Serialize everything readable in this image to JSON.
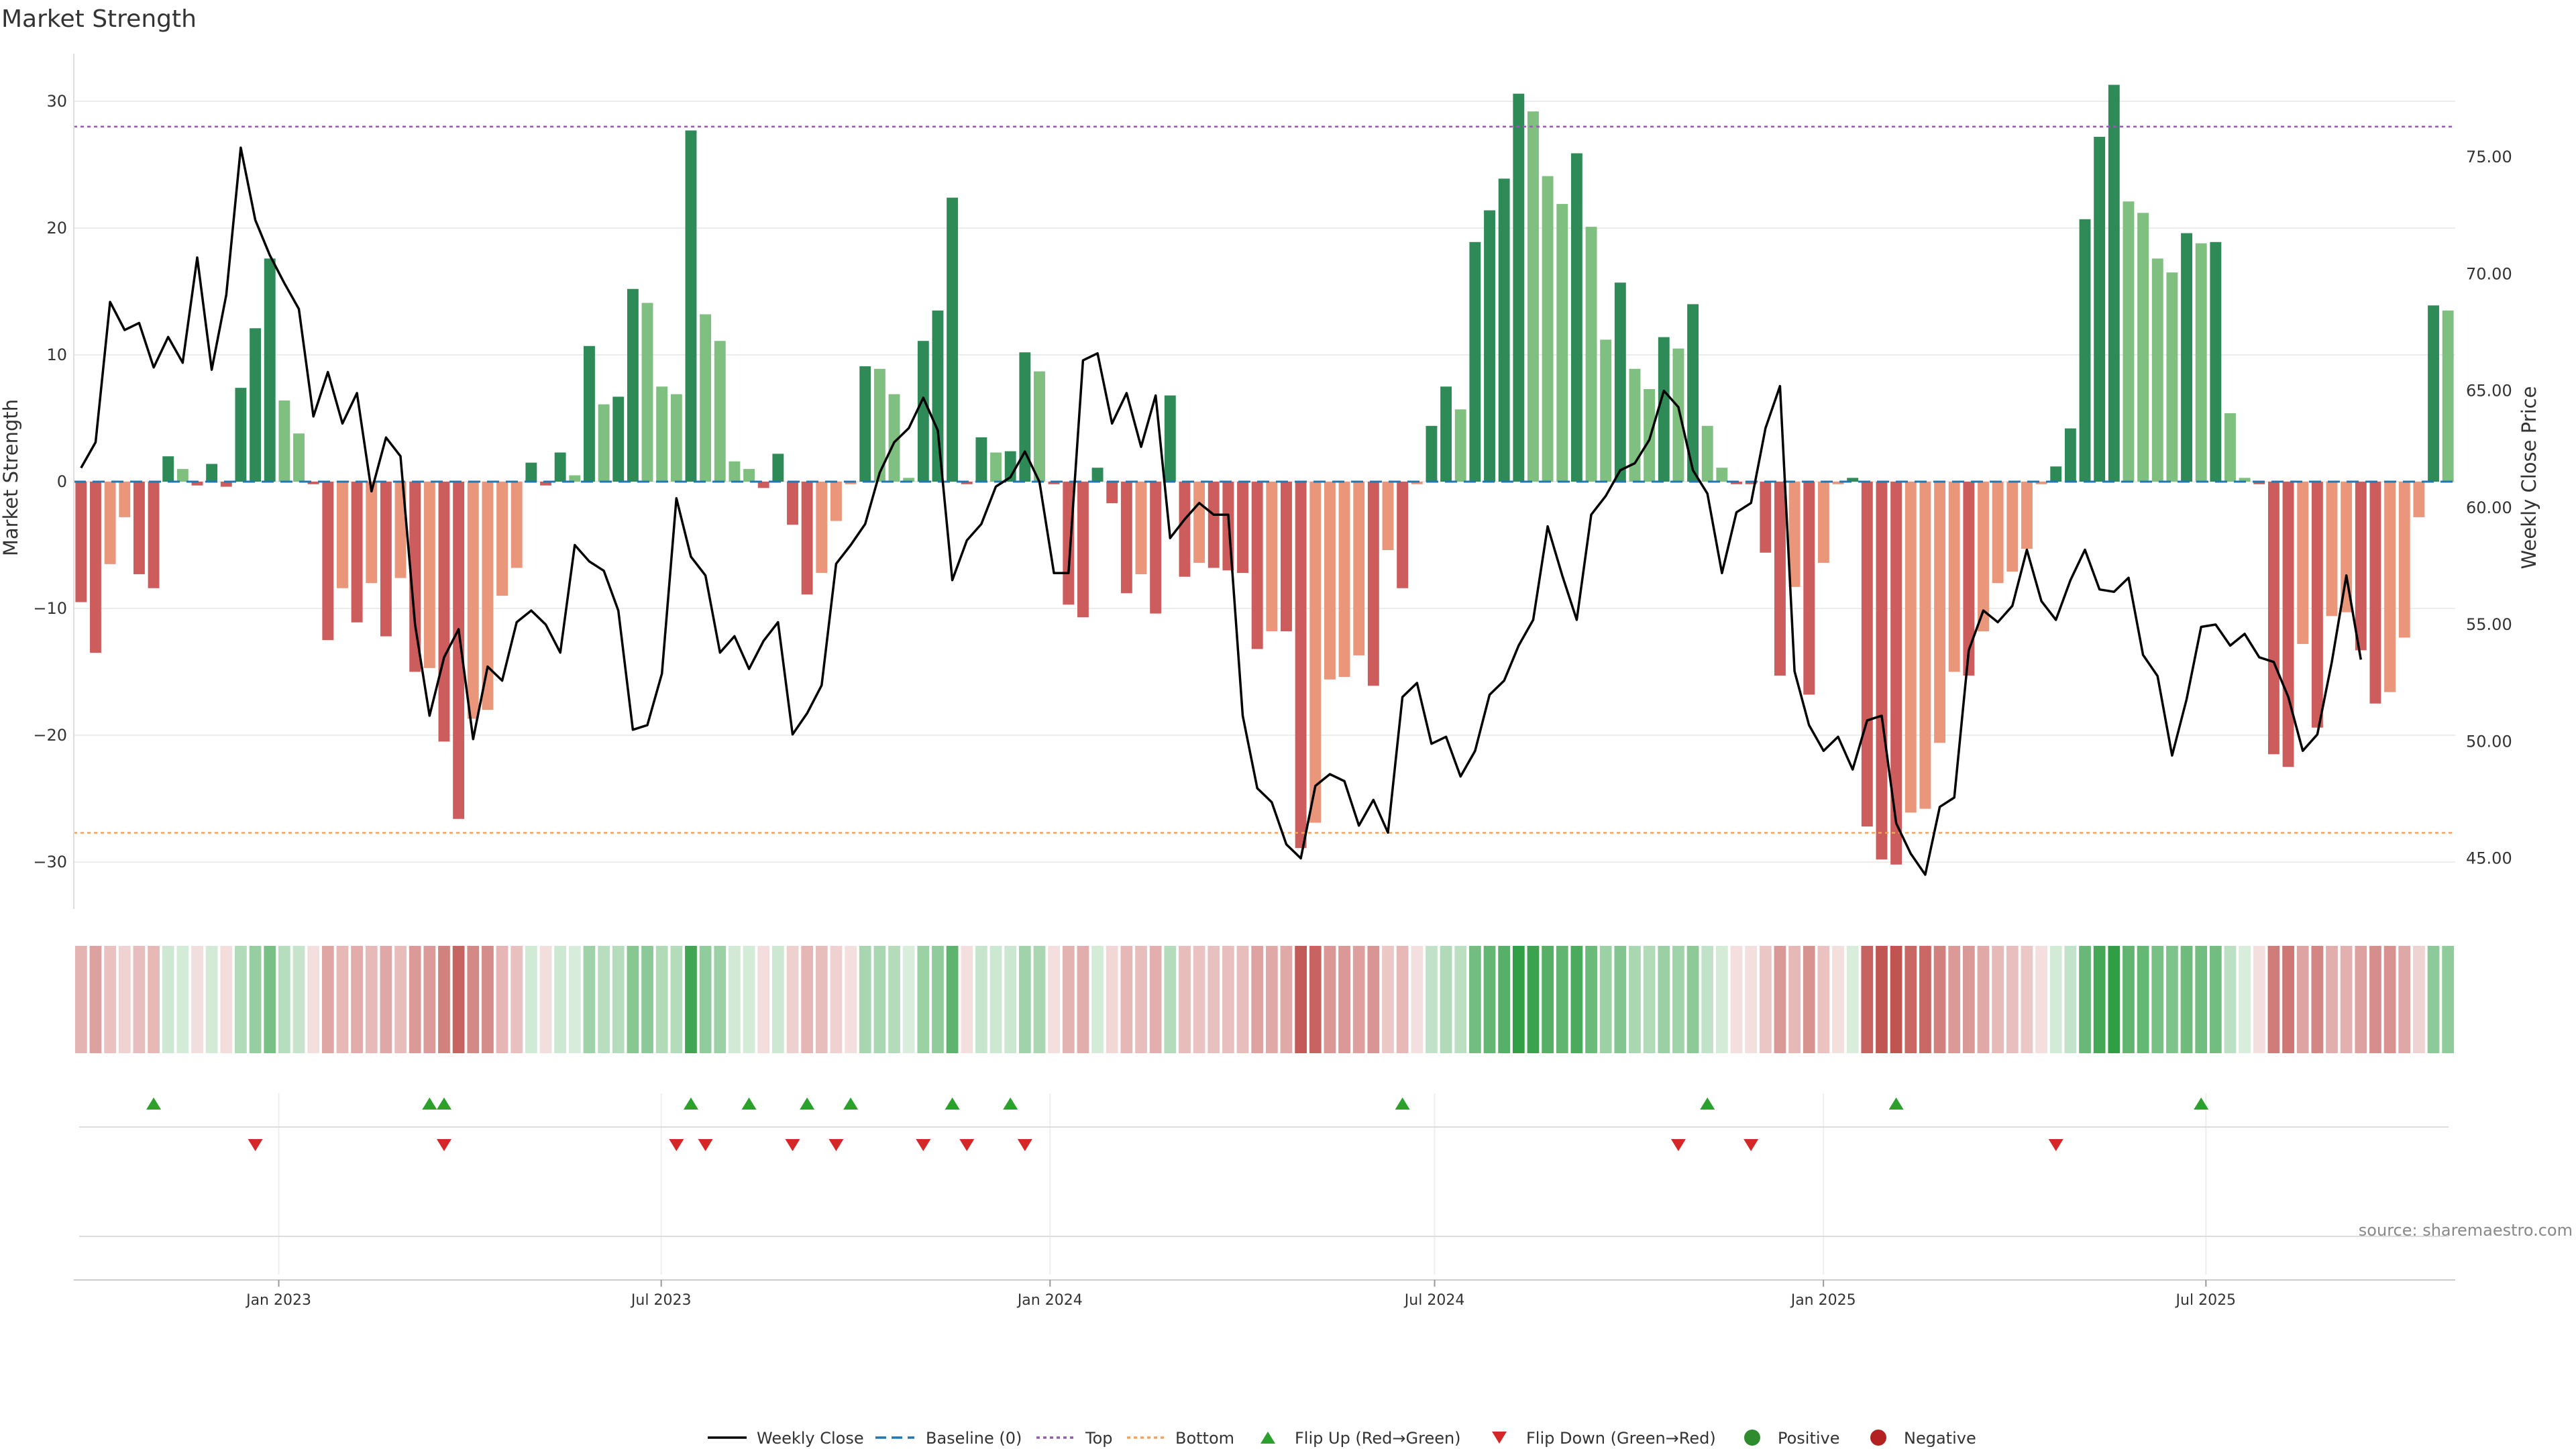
{
  "chart_data": {
    "type": "bar",
    "title": "Market Strength",
    "ylabel": "Market Strength",
    "y2label": "Weekly Close Price",
    "ylim": [
      -34,
      34
    ],
    "y2lim": [
      43.0,
      80.0
    ],
    "yticks": [
      30,
      20,
      10,
      0,
      -10,
      -20,
      -30
    ],
    "ytick_labels": [
      "30",
      "20",
      "10",
      "0",
      "−10",
      "−20",
      "−30"
    ],
    "y2ticks": [
      75,
      70,
      65,
      60,
      55,
      50,
      45
    ],
    "y2tick_labels": [
      "75.00",
      "70.00",
      "65.00",
      "60.00",
      "55.00",
      "50.00",
      "45.00"
    ],
    "top_line": 28,
    "bottom_line": -27.7,
    "x_start": "2022-09-26",
    "x_end": "2025-10-27",
    "x_ticks": [
      {
        "date": "2023-01-01",
        "label": "Jan 2023"
      },
      {
        "date": "2023-07-01",
        "label": "Jul 2023"
      },
      {
        "date": "2024-01-01",
        "label": "Jan 2024"
      },
      {
        "date": "2024-07-01",
        "label": "Jul 2024"
      },
      {
        "date": "2025-01-01",
        "label": "Jan 2025"
      },
      {
        "date": "2025-07-01",
        "label": "Jul 2025"
      }
    ],
    "series": [
      {
        "name": "Market Strength",
        "type": "bar",
        "values": [
          -9.5,
          -13.5,
          -6.5,
          -2.8,
          -7.3,
          -8.4,
          2,
          1,
          -0.3,
          1.4,
          -0.4,
          7.4,
          12.1,
          17.6,
          6.4,
          3.8,
          -0.2,
          -12.5,
          -8.4,
          -11.1,
          -8,
          -12.2,
          -7.6,
          -15,
          -14.7,
          -20.5,
          -26.6,
          -18.7,
          -18,
          -9,
          -6.8,
          1.5,
          -0.3,
          2.3,
          0.5,
          10.7,
          6.1,
          6.7,
          15.2,
          14.1,
          7.5,
          6.9,
          27.7,
          13.2,
          11.1,
          1.6,
          1,
          -0.5,
          2.2,
          -3.4,
          -8.9,
          -7.2,
          -3.1,
          -0.2,
          9.1,
          8.9,
          6.9,
          0.3,
          11.1,
          13.5,
          22.4,
          -0.2,
          3.5,
          2.3,
          2.4,
          10.2,
          8.7,
          -0.2,
          -9.7,
          -10.7,
          1.1,
          -1.7,
          -8.8,
          -7.3,
          -10.4,
          6.8,
          -7.5,
          -6.4,
          -6.8,
          -7,
          -7.2,
          -13.2,
          -11.8,
          -11.8,
          -28.9,
          -26.9,
          -15.6,
          -15.4,
          -13.7,
          -16.1,
          -5.4,
          -8.4,
          -0.2,
          4.4,
          7.5,
          5.7,
          18.9,
          21.4,
          23.9,
          30.6,
          29.2,
          24.1,
          21.9,
          25.9,
          20.1,
          11.2,
          15.7,
          8.9,
          7.3,
          11.4,
          10.5,
          14,
          4.4,
          1.1,
          -0.2,
          -0.2,
          -5.6,
          -15.3,
          -8.3,
          -16.8,
          -6.4,
          -0.2,
          0.3,
          -27.2,
          -29.8,
          -30.2,
          -26.1,
          -25.8,
          -20.6,
          -15,
          -15.3,
          -11.8,
          -8,
          -7.1,
          -5.3,
          -0.2,
          1.2,
          4.2,
          20.7,
          27.2,
          31.3,
          22.1,
          21.2,
          17.6,
          16.5,
          19.6,
          18.8,
          18.9,
          5.4,
          0.3,
          -0.2,
          -21.5,
          -22.5,
          -12.8,
          -19.4,
          -10.6,
          -10.3,
          -13.3,
          -17.5,
          -16.6,
          -12.3,
          -2.8,
          13.9,
          13.5
        ]
      },
      {
        "name": "Weekly Close",
        "type": "line",
        "axis": "y2",
        "values": [
          61.7,
          62.8,
          68.8,
          67.6,
          67.9,
          66,
          67.3,
          66.2,
          70.7,
          65.9,
          69.1,
          75.4,
          72.3,
          70.8,
          69.6,
          68.5,
          63.9,
          65.8,
          63.6,
          64.9,
          60.7,
          63,
          62.2,
          55,
          51.1,
          53.6,
          54.8,
          50.1,
          53.2,
          52.6,
          55.1,
          55.6,
          55,
          53.8,
          58.4,
          57.7,
          57.3,
          55.6,
          50.5,
          50.7,
          52.9,
          60.4,
          57.9,
          57.1,
          53.8,
          54.5,
          53.1,
          54.3,
          55.1,
          50.3,
          51.2,
          52.4,
          57.6,
          58.4,
          59.3,
          61.5,
          62.8,
          63.4,
          64.7,
          63.3,
          56.9,
          58.6,
          59.3,
          60.9,
          61.3,
          62.4,
          61.1,
          57.2,
          57.2,
          66.3,
          66.6,
          63.6,
          64.9,
          62.6,
          64.8,
          58.7,
          59.5,
          60.2,
          59.7,
          59.7,
          51.1,
          48,
          47.4,
          45.6,
          45,
          48.1,
          48.6,
          48.3,
          46.4,
          47.5,
          46.1,
          51.9,
          52.5,
          49.9,
          50.2,
          48.5,
          49.6,
          52,
          52.6,
          54.1,
          55.2,
          59.2,
          57.1,
          55.2,
          59.7,
          60.5,
          61.6,
          61.9,
          62.9,
          65,
          64.3,
          61.6,
          60.6,
          57.2,
          59.8,
          60.2,
          63.4,
          65.2,
          53,
          50.7,
          49.6,
          50.2,
          48.8,
          50.9,
          51.1,
          46.5,
          45.2,
          44.3,
          47.2,
          47.6,
          53.9,
          55.6,
          55.1,
          55.8,
          58.2,
          56,
          55.2,
          56.9,
          58.2,
          56.5,
          56.4,
          57,
          53.7,
          52.8,
          49.4,
          51.8,
          54.9,
          55,
          54.1,
          54.6,
          53.6,
          53.4,
          51.9,
          49.6,
          50.3,
          53.4,
          57.1,
          53.5
        ]
      }
    ],
    "heat_strip": "Market Strength intensity (red negative, green positive)",
    "flip_up_weeks": [
      5,
      24,
      25,
      42,
      46,
      50,
      53,
      60,
      64,
      91,
      112,
      125,
      146
    ],
    "flip_down_weeks": [
      12,
      25,
      41,
      43,
      49,
      52,
      58,
      61,
      65,
      110,
      115,
      136
    ],
    "legend": [
      "Weekly Close",
      "Baseline (0)",
      "Top",
      "Bottom",
      "Flip Up (Red→Green)",
      "Flip Down (Green→Red)",
      "Positive",
      "Negative"
    ],
    "legend_position": "bottom-center",
    "source": "source: sharemaestro.com",
    "colors": {
      "pos_strong": "#2e8b57",
      "pos_light": "#7fbf7f",
      "neg_strong": "#cd5c5c",
      "neg_light": "#e9967a",
      "line": "#000000",
      "baseline": "#1f77b4",
      "top": "#9b59b6",
      "bottom": "#f4a460",
      "flip_up": "#2ca02c",
      "flip_down": "#d62728",
      "positive_dot": "#2e8b2e",
      "negative_dot": "#b22222"
    }
  }
}
